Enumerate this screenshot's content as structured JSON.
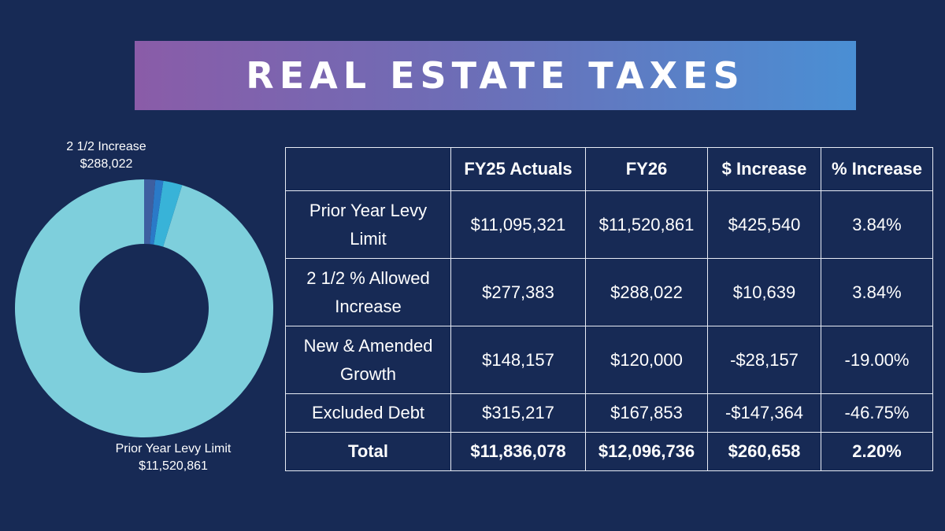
{
  "banner": {
    "title": "REAL ESTATE TAXES"
  },
  "chart_data": {
    "type": "pie",
    "hole": true,
    "slices": [
      {
        "label": "Prior Year Levy Limit",
        "value": 11520861,
        "value_label": "$11,520,861",
        "color": "#7ecfdc"
      },
      {
        "label": "2 1/2 Increase",
        "value": 288022,
        "value_label": "$288,022",
        "color": "#38b3d8"
      },
      {
        "label": "",
        "value": 120000,
        "value_label": "",
        "color": "#2a7ac8"
      },
      {
        "label": "",
        "value": 167853,
        "value_label": "",
        "color": "#3e5fa0"
      }
    ]
  },
  "table": {
    "headers": [
      "",
      "FY25 Actuals",
      "FY26",
      "$ Increase",
      "% Increase"
    ],
    "rows": [
      {
        "label": "Prior Year Levy Limit",
        "cells": [
          "$11,095,321",
          "$11,520,861",
          "$425,540",
          "3.84%"
        ]
      },
      {
        "label": "2 1/2 % Allowed Increase",
        "cells": [
          "$277,383",
          "$288,022",
          "$10,639",
          "3.84%"
        ]
      },
      {
        "label": "New & Amended Growth",
        "cells": [
          "$148,157",
          "$120,000",
          "-$28,157",
          "-19.00%"
        ]
      },
      {
        "label": "Excluded Debt",
        "cells": [
          "$315,217",
          "$167,853",
          "-$147,364",
          "-46.75%"
        ]
      },
      {
        "label": "Total",
        "cells": [
          "$11,836,078",
          "$12,096,736",
          "$260,658",
          "2.20%"
        ]
      }
    ]
  }
}
